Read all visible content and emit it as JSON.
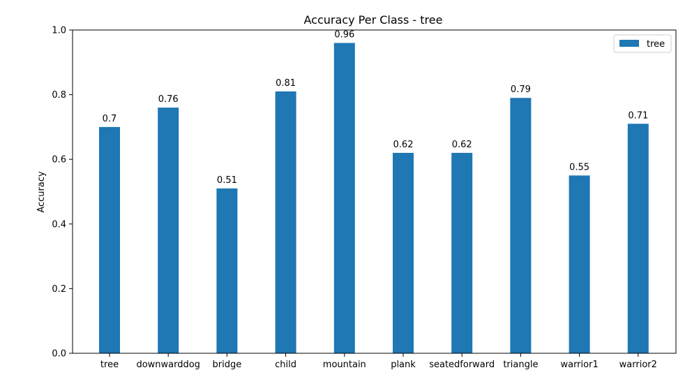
{
  "chart_data": {
    "type": "bar",
    "title": "Accuracy Per Class - tree",
    "xlabel": "",
    "ylabel": "Accuracy",
    "categories": [
      "tree",
      "downwarddog",
      "bridge",
      "child",
      "mountain",
      "plank",
      "seatedforward",
      "triangle",
      "warrior1",
      "warrior2"
    ],
    "series": [
      {
        "name": "tree",
        "color": "#1f77b4",
        "values": [
          0.7,
          0.76,
          0.51,
          0.81,
          0.96,
          0.62,
          0.62,
          0.79,
          0.55,
          0.71
        ]
      }
    ],
    "data_labels": [
      "0.7",
      "0.76",
      "0.51",
      "0.81",
      "0.96",
      "0.62",
      "0.62",
      "0.79",
      "0.55",
      "0.71"
    ],
    "yticks": [
      "0.0",
      "0.2",
      "0.4",
      "0.6",
      "0.8",
      "1.0"
    ],
    "ylim": [
      0,
      1.0
    ],
    "legend_position": "top-right",
    "grid": false
  }
}
